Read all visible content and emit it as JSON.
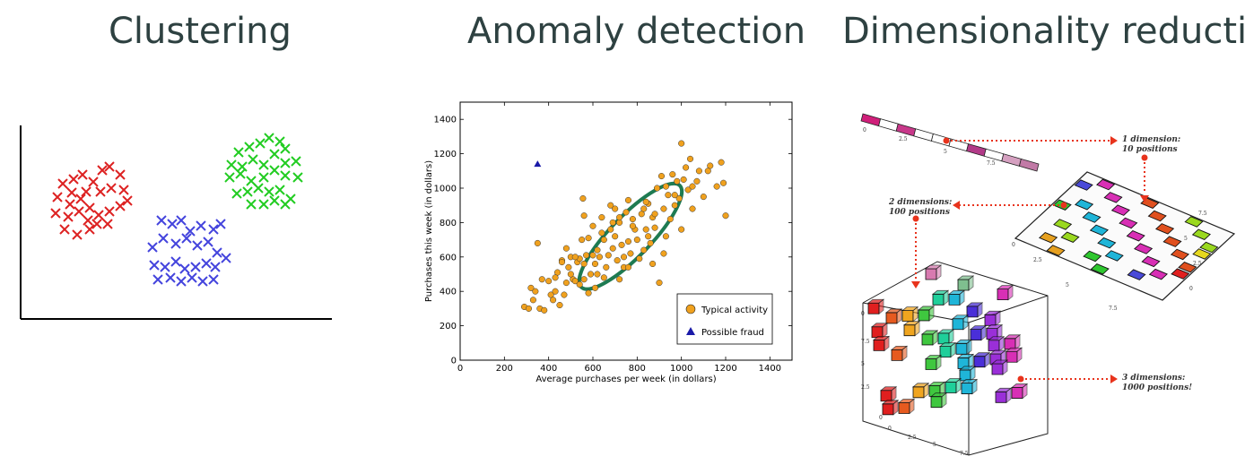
{
  "panels": [
    {
      "title": "Clustering"
    },
    {
      "title": "Anomaly detection"
    },
    {
      "title": "Dimensionality reduction"
    }
  ],
  "clustering": {
    "colors": {
      "red": "#dd2222",
      "blue": "#4444dd",
      "green": "#22cc22"
    }
  },
  "chart_data": {
    "type": "scatter",
    "title": "",
    "xlabel": "Average purchases per week (in dollars)",
    "ylabel": "Purchases this week (in dollars)",
    "xlim": [
      0,
      1500
    ],
    "ylim": [
      0,
      1500
    ],
    "xticks": [
      "0",
      "200",
      "400",
      "600",
      "800",
      "1000",
      "1200",
      "1400"
    ],
    "yticks": [
      "0",
      "200",
      "400",
      "600",
      "800",
      "1000",
      "1200",
      "1400"
    ],
    "legend": "bottom-right",
    "series": [
      {
        "name": "Typical activity",
        "color": "#f0a11e",
        "marker": "circle",
        "points": [
          [
            290,
            310
          ],
          [
            310,
            300
          ],
          [
            320,
            420
          ],
          [
            330,
            350
          ],
          [
            340,
            400
          ],
          [
            350,
            680
          ],
          [
            360,
            300
          ],
          [
            370,
            470
          ],
          [
            380,
            290
          ],
          [
            400,
            460
          ],
          [
            410,
            380
          ],
          [
            420,
            350
          ],
          [
            430,
            400
          ],
          [
            440,
            510
          ],
          [
            450,
            320
          ],
          [
            460,
            580
          ],
          [
            470,
            380
          ],
          [
            480,
            450
          ],
          [
            490,
            540
          ],
          [
            500,
            600
          ],
          [
            510,
            470
          ],
          [
            520,
            460
          ],
          [
            530,
            570
          ],
          [
            540,
            590
          ],
          [
            550,
            700
          ],
          [
            555,
            940
          ],
          [
            560,
            560
          ],
          [
            570,
            610
          ],
          [
            580,
            390
          ],
          [
            590,
            500
          ],
          [
            600,
            780
          ],
          [
            610,
            420
          ],
          [
            620,
            640
          ],
          [
            630,
            600
          ],
          [
            640,
            830
          ],
          [
            650,
            700
          ],
          [
            660,
            540
          ],
          [
            670,
            610
          ],
          [
            680,
            760
          ],
          [
            690,
            650
          ],
          [
            700,
            720
          ],
          [
            710,
            580
          ],
          [
            720,
            800
          ],
          [
            730,
            670
          ],
          [
            740,
            540
          ],
          [
            750,
            860
          ],
          [
            760,
            690
          ],
          [
            770,
            620
          ],
          [
            780,
            820
          ],
          [
            790,
            760
          ],
          [
            800,
            700
          ],
          [
            810,
            590
          ],
          [
            820,
            850
          ],
          [
            830,
            640
          ],
          [
            840,
            760
          ],
          [
            850,
            910
          ],
          [
            860,
            680
          ],
          [
            870,
            830
          ],
          [
            880,
            770
          ],
          [
            890,
            1000
          ],
          [
            900,
            450
          ],
          [
            910,
            1070
          ],
          [
            920,
            880
          ],
          [
            930,
            720
          ],
          [
            940,
            960
          ],
          [
            950,
            820
          ],
          [
            960,
            1080
          ],
          [
            970,
            900
          ],
          [
            980,
            1040
          ],
          [
            990,
            940
          ],
          [
            1000,
            1260
          ],
          [
            1010,
            1050
          ],
          [
            1020,
            1120
          ],
          [
            1030,
            990
          ],
          [
            1040,
            1170
          ],
          [
            1050,
            1010
          ],
          [
            1070,
            1040
          ],
          [
            1080,
            1100
          ],
          [
            1100,
            950
          ],
          [
            1130,
            1130
          ],
          [
            1160,
            1010
          ],
          [
            1190,
            1030
          ],
          [
            1200,
            840
          ],
          [
            560,
            840
          ],
          [
            620,
            500
          ],
          [
            680,
            900
          ],
          [
            720,
            470
          ],
          [
            760,
            540
          ],
          [
            840,
            920
          ],
          [
            880,
            850
          ],
          [
            700,
            880
          ],
          [
            740,
            600
          ],
          [
            650,
            480
          ],
          [
            600,
            610
          ],
          [
            540,
            440
          ],
          [
            500,
            500
          ],
          [
            460,
            570
          ],
          [
            430,
            480
          ],
          [
            580,
            710
          ],
          [
            640,
            740
          ],
          [
            720,
            830
          ],
          [
            780,
            780
          ],
          [
            830,
            880
          ],
          [
            870,
            560
          ],
          [
            920,
            620
          ],
          [
            970,
            960
          ],
          [
            1000,
            760
          ],
          [
            760,
            930
          ],
          [
            690,
            800
          ],
          [
            610,
            560
          ],
          [
            560,
            470
          ],
          [
            520,
            600
          ],
          [
            480,
            650
          ],
          [
            850,
            720
          ],
          [
            930,
            1010
          ],
          [
            1050,
            880
          ],
          [
            1120,
            1100
          ],
          [
            1180,
            1150
          ]
        ]
      },
      {
        "name": "Possible fraud",
        "color": "#1a1aa8",
        "marker": "triangle",
        "points": [
          [
            350,
            1140
          ]
        ]
      }
    ],
    "ellipse": {
      "color": "#1e7b52",
      "cx": 770,
      "cy": 720,
      "rx": 640,
      "ry": 235,
      "angle_deg": 46
    }
  },
  "dimensionality": {
    "labels": {
      "one_d": [
        "1 dimension:",
        "10 positions"
      ],
      "two_d": [
        "2 dimensions:",
        "100 positions"
      ],
      "three_d": [
        "3 dimensions:",
        "1000 positions!"
      ]
    },
    "tick_labels": [
      "0",
      "2.5",
      "5",
      "7.5"
    ],
    "arrow_color": "#e8331c"
  }
}
